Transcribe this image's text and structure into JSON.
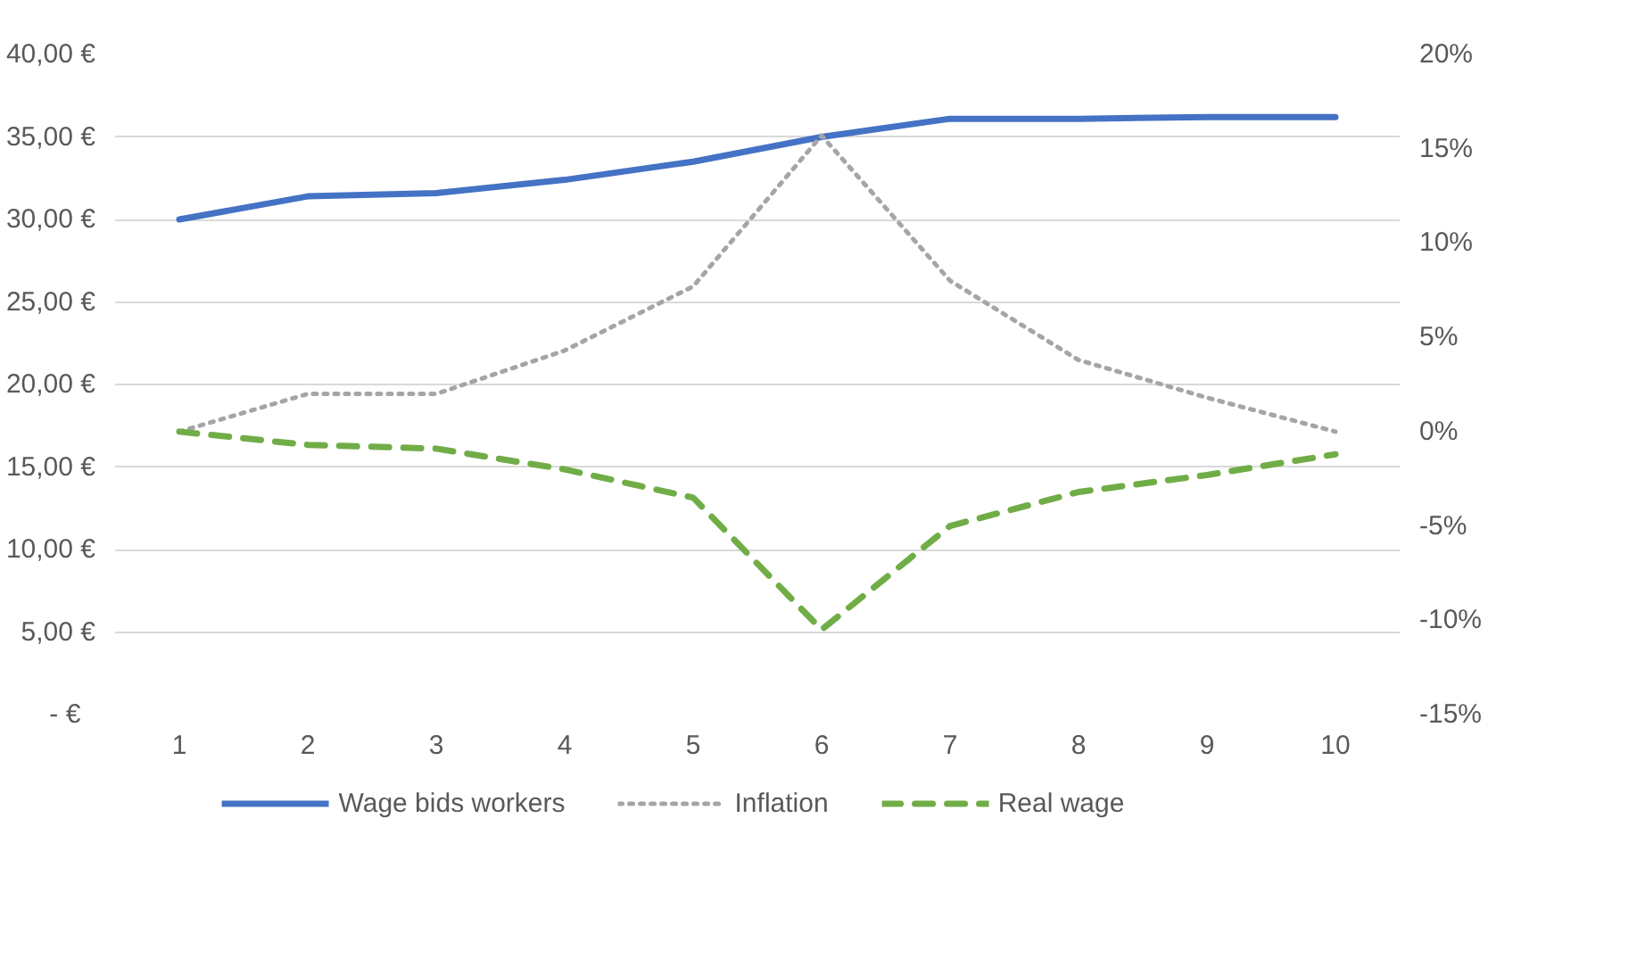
{
  "chart_data": {
    "type": "line",
    "x": [
      1,
      2,
      3,
      4,
      5,
      6,
      7,
      8,
      9,
      10
    ],
    "xlim": [
      0.5,
      10.5
    ],
    "xticks": [
      1,
      2,
      3,
      4,
      5,
      6,
      7,
      8,
      9,
      10
    ],
    "ylim": [
      0,
      40
    ],
    "yticks": [
      {
        "value": 0,
        "label": "-   €"
      },
      {
        "value": 5,
        "label": "5,00 €"
      },
      {
        "value": 10,
        "label": "10,00 €"
      },
      {
        "value": 15,
        "label": "15,00 €"
      },
      {
        "value": 20,
        "label": "20,00 €"
      },
      {
        "value": 25,
        "label": "25,00 €"
      },
      {
        "value": 30,
        "label": "30,00 €"
      },
      {
        "value": 35,
        "label": "35,00 €"
      },
      {
        "value": 40,
        "label": "40,00 €"
      }
    ],
    "y2lim": [
      -15,
      20
    ],
    "y2ticks": [
      {
        "value": -15,
        "label": "-15%"
      },
      {
        "value": -10,
        "label": "-10%"
      },
      {
        "value": -5,
        "label": "-5%"
      },
      {
        "value": 0,
        "label": "0%"
      },
      {
        "value": 5,
        "label": "5%"
      },
      {
        "value": 10,
        "label": "10%"
      },
      {
        "value": 15,
        "label": "15%"
      },
      {
        "value": 20,
        "label": "20%"
      }
    ],
    "grid": "y",
    "legend": "bottom",
    "series": [
      {
        "name": "Wage bids workers",
        "color": "#4472c4",
        "line_style": "solid",
        "values": [
          30,
          31.4,
          31.6,
          32.4,
          33.5,
          35.0,
          36.1,
          36.1,
          36.2,
          36.2
        ]
      },
      {
        "name": "Inflation",
        "color": "#a5a5a5",
        "line_style": "dotted",
        "axis": "y2",
        "values": [
          0,
          2,
          2,
          4.3,
          7.7,
          15.7,
          8.0,
          3.8,
          1.8,
          0
        ]
      },
      {
        "name": "Real wage",
        "color": "#70ad47",
        "line_style": "dashed",
        "axis": "y2",
        "values": [
          0,
          -0.7,
          -0.9,
          -2.0,
          -3.5,
          -10.5,
          -5.0,
          -3.2,
          -2.3,
          -1.2
        ]
      }
    ]
  }
}
